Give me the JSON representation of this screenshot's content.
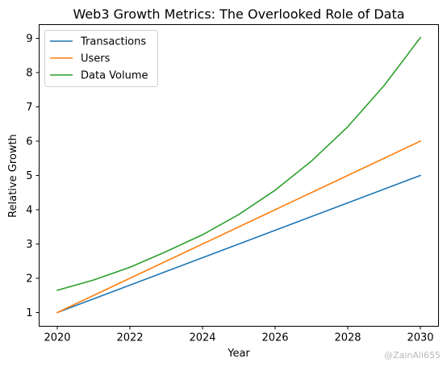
{
  "chart_data": {
    "type": "line",
    "title": "Web3 Growth Metrics: The Overlooked Role of Data",
    "xlabel": "Year",
    "ylabel": "Relative Growth",
    "x": [
      2020,
      2021,
      2022,
      2023,
      2024,
      2025,
      2026,
      2027,
      2028,
      2029,
      2030
    ],
    "x_ticks": [
      2020,
      2022,
      2024,
      2026,
      2028,
      2030
    ],
    "y_ticks": [
      1,
      2,
      3,
      4,
      5,
      6,
      7,
      8,
      9
    ],
    "xlim": [
      2019.5,
      2030.5
    ],
    "ylim": [
      0.6,
      9.4
    ],
    "grid": false,
    "legend_position": "upper-left",
    "series": [
      {
        "name": "Transactions",
        "color": "#1f77b4",
        "values": [
          1.0,
          1.4,
          1.8,
          2.2,
          2.6,
          3.0,
          3.4,
          3.8,
          4.2,
          4.6,
          5.0
        ]
      },
      {
        "name": "Users",
        "color": "#ff7f0e",
        "values": [
          1.0,
          1.5,
          2.0,
          2.5,
          3.0,
          3.5,
          4.0,
          4.5,
          5.0,
          5.5,
          6.0
        ]
      },
      {
        "name": "Data Volume",
        "color": "#2ca02c",
        "values": [
          1.65,
          1.95,
          2.32,
          2.78,
          3.27,
          3.86,
          4.57,
          5.42,
          6.42,
          7.62,
          9.02
        ]
      }
    ]
  },
  "watermark": "@ZainAli655"
}
